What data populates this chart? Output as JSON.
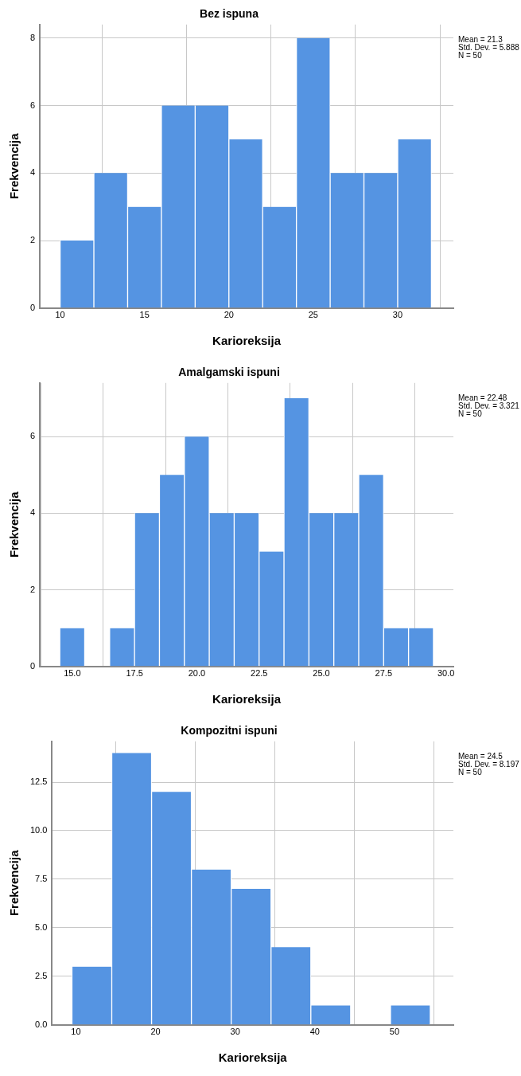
{
  "chart_data": [
    {
      "type": "histogram",
      "title": "Bez ispuna",
      "xlabel": "Karioreksija",
      "ylabel": "Frekvencija",
      "bins": [
        10,
        12,
        14,
        16,
        18,
        20,
        22,
        24,
        26,
        28,
        30,
        32
      ],
      "values": [
        2,
        4,
        3,
        6,
        6,
        5,
        3,
        8,
        4,
        4,
        5
      ],
      "color": "#5594e2",
      "xlim": [
        8.8,
        33.3
      ],
      "xticks": [
        10,
        15,
        20,
        25,
        30
      ],
      "ylim": [
        0,
        8.4
      ],
      "yticks": [
        0,
        2,
        4,
        6,
        8
      ],
      "grid": true,
      "annotations": [
        "Mean = 21.3",
        "Std. Dev. = 5.888",
        "N = 50"
      ]
    },
    {
      "type": "histogram",
      "title": "Amalgamski ispuni",
      "xlabel": "Karioreksija",
      "ylabel": "Frekvencija",
      "bins": [
        14.5,
        15.5,
        16.5,
        17.5,
        18.5,
        19.5,
        20.5,
        21.5,
        22.5,
        23.5,
        24.5,
        25.5,
        26.5,
        27.5,
        28.5,
        29.5
      ],
      "values": [
        1,
        0,
        1,
        4,
        5,
        6,
        4,
        4,
        3,
        7,
        4,
        4,
        5,
        1,
        1
      ],
      "color": "#5594e2",
      "xlim": [
        13.7,
        30.3
      ],
      "xticks": [
        {
          "value": 15,
          "label": "15.0"
        },
        {
          "value": 17.5,
          "label": "17.5"
        },
        {
          "value": 20,
          "label": "20.0"
        },
        {
          "value": 22.5,
          "label": "22.5"
        },
        {
          "value": 25,
          "label": "25.0"
        },
        {
          "value": 27.5,
          "label": "27.5"
        },
        {
          "value": 30,
          "label": "30.0"
        }
      ],
      "ylim": [
        0,
        7.4
      ],
      "yticks": [
        0,
        2,
        4,
        6
      ],
      "grid": true,
      "annotations": [
        "Mean = 22.48",
        "Std. Dev. = 3.321",
        "N = 50"
      ]
    },
    {
      "type": "histogram",
      "title": "Kompozitni ispuni",
      "xlabel": "Karioreksija",
      "ylabel": "Frekvencija",
      "bins": [
        9.5,
        14.5,
        19.5,
        24.5,
        29.5,
        34.5,
        39.5,
        44.5,
        49.5,
        54.5
      ],
      "values": [
        3,
        14,
        12,
        8,
        7,
        4,
        1,
        0,
        1
      ],
      "color": "#5594e2",
      "xlim": [
        7,
        57.4
      ],
      "xticks": [
        10,
        20,
        30,
        40,
        50
      ],
      "ylim": [
        0,
        14.6
      ],
      "yticks": [
        {
          "value": 0,
          "label": "0.0"
        },
        {
          "value": 2.5,
          "label": "2.5"
        },
        {
          "value": 5,
          "label": "5.0"
        },
        {
          "value": 7.5,
          "label": "7.5"
        },
        {
          "value": 10,
          "label": "10.0"
        },
        {
          "value": 12.5,
          "label": "12.5"
        }
      ],
      "grid": true,
      "annotations": [
        "Mean = 24.5",
        "Std. Dev. = 8.197",
        "N = 50"
      ]
    }
  ]
}
